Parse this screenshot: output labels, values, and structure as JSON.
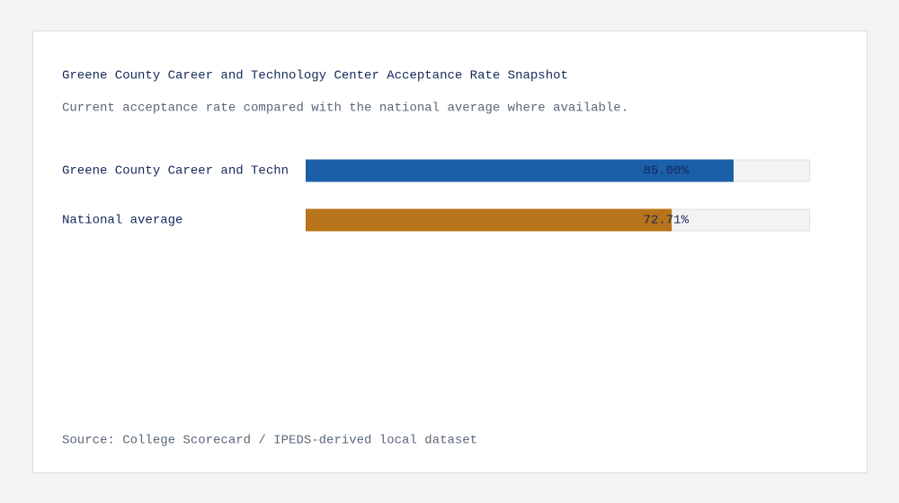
{
  "chart_data": {
    "type": "hbar",
    "title": "Greene County Career and Technology Center Acceptance Rate Snapshot",
    "subtitle": "Current acceptance rate compared with the national average where available.",
    "categories": [
      "Greene County Career and Techn",
      "National average"
    ],
    "values": [
      85.0,
      72.71
    ],
    "value_labels": [
      "85.00%",
      "72.71%"
    ],
    "colors": [
      "#1a5fa8",
      "#b8741a"
    ],
    "xlim": [
      0,
      100
    ],
    "source": "Source: College Scorecard / IPEDS-derived local dataset"
  }
}
